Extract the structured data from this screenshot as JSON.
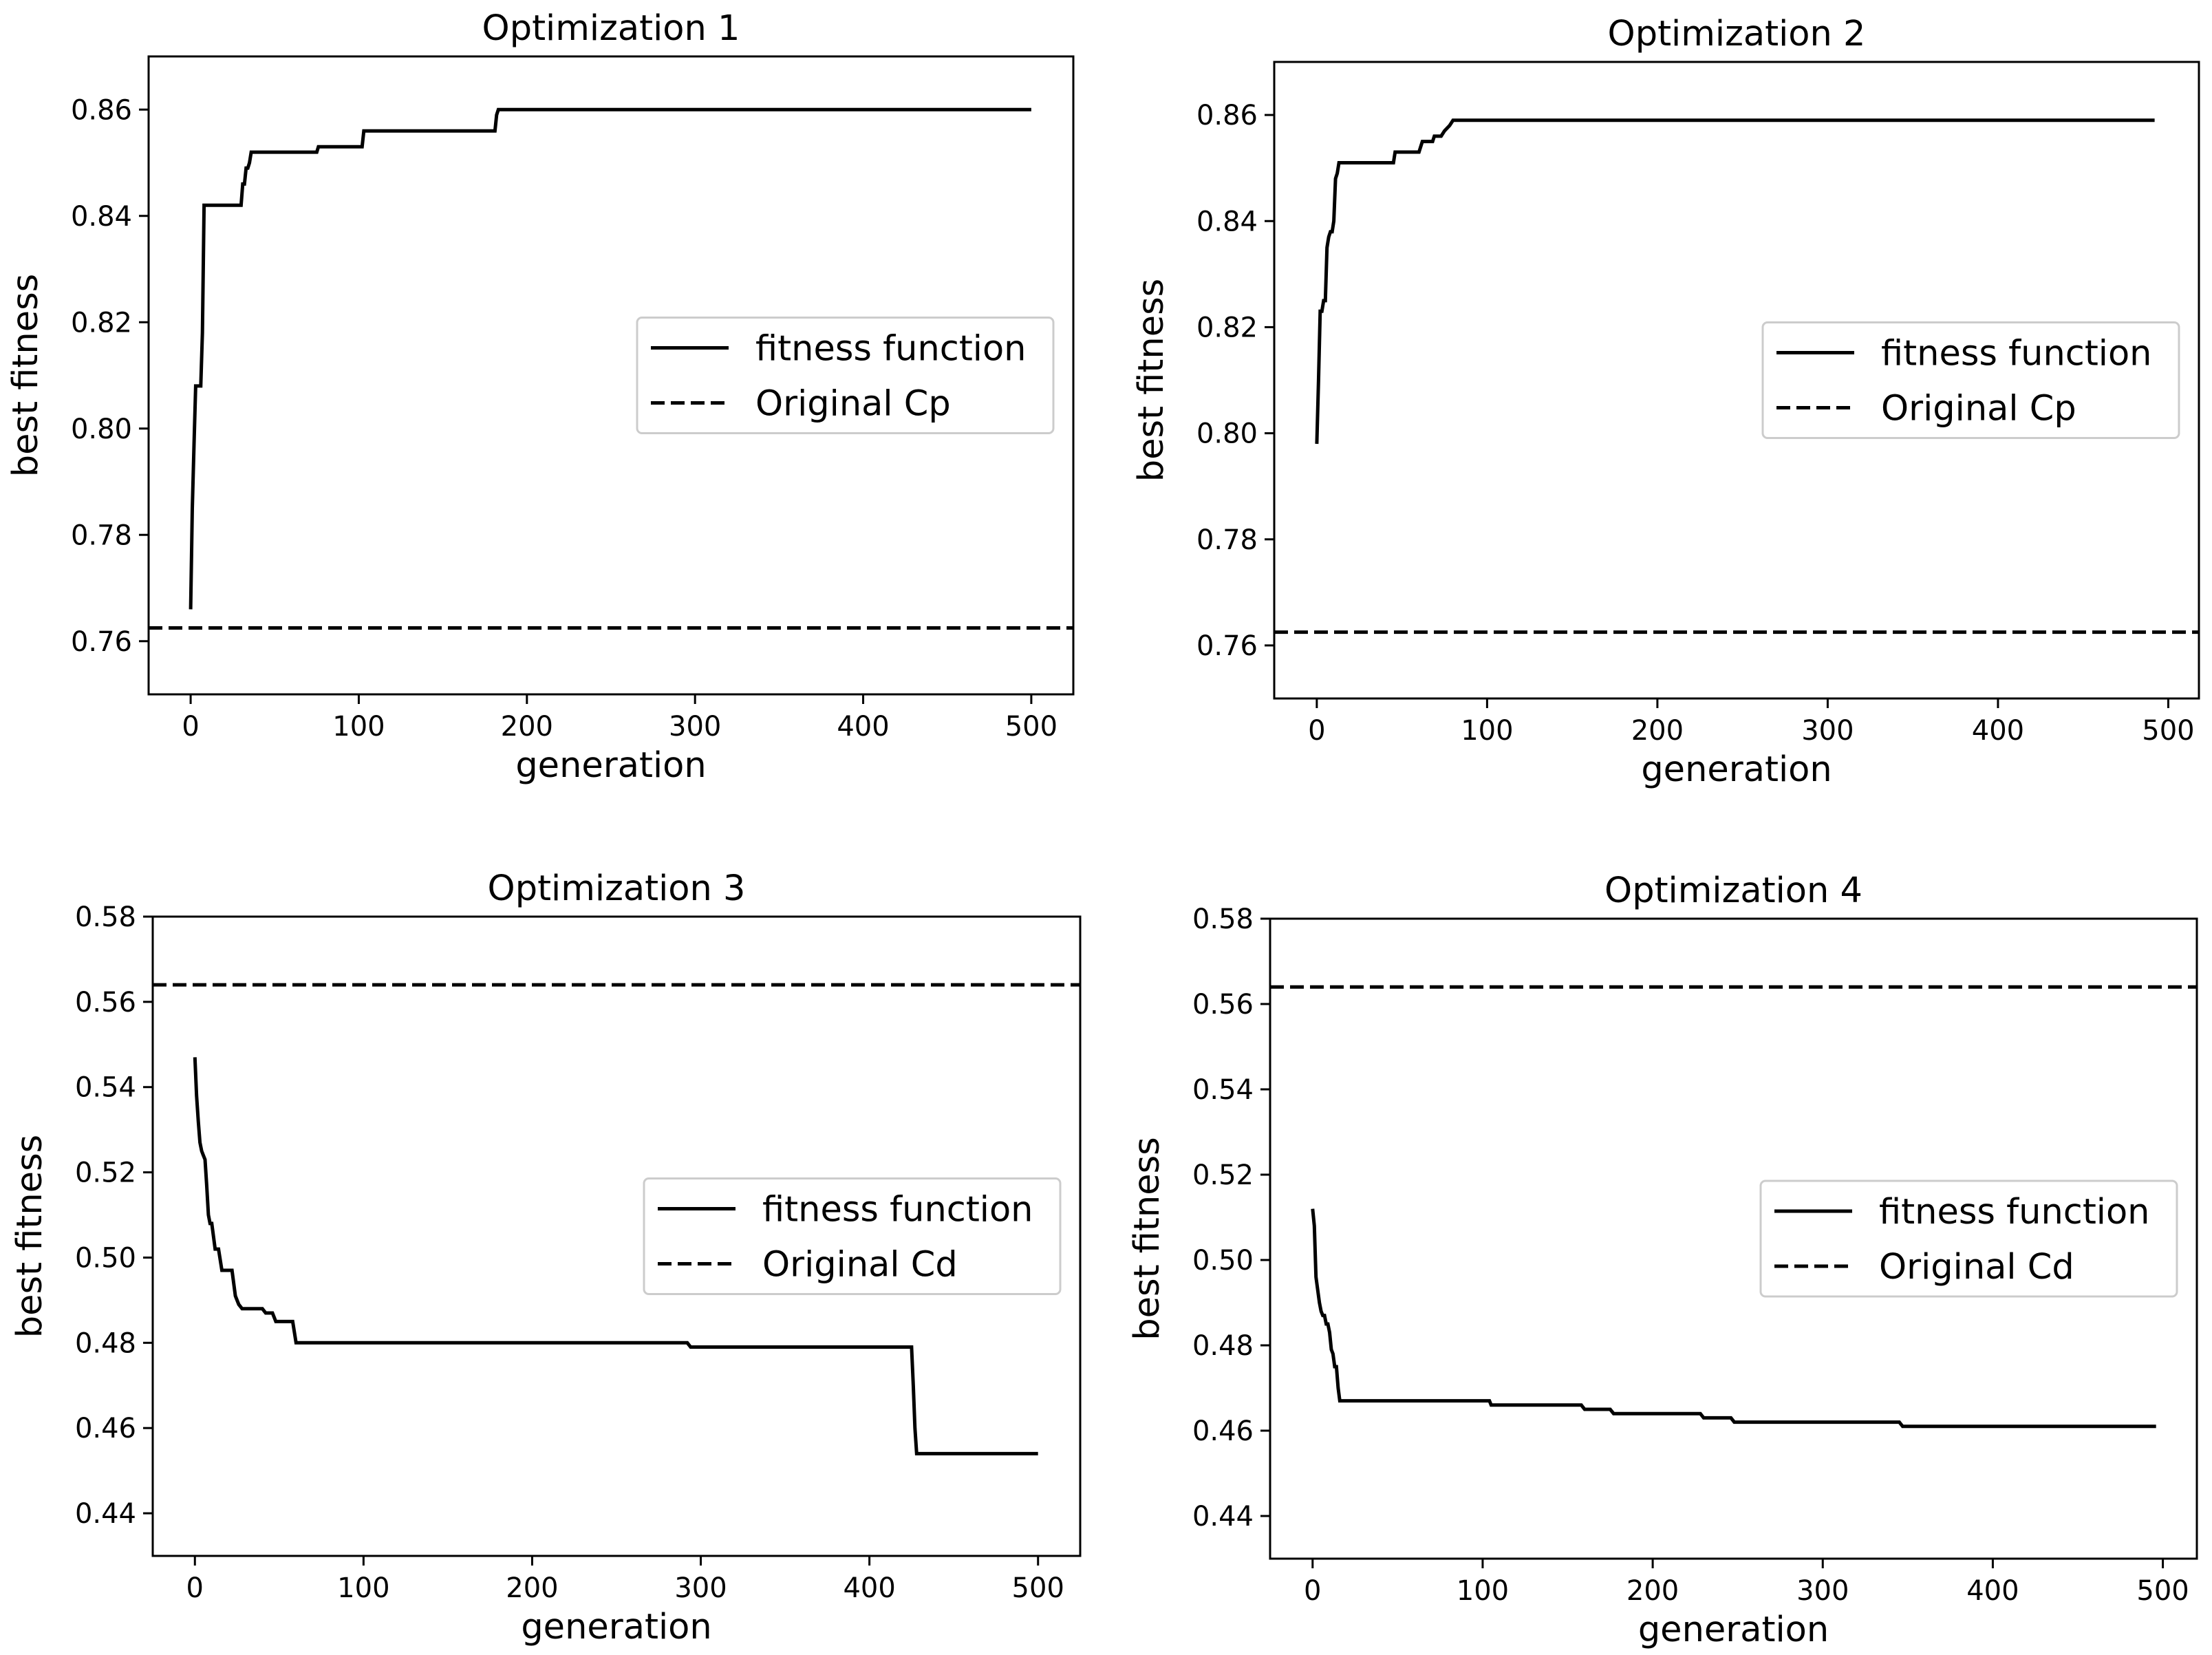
{
  "figure": {
    "background": "#ffffff",
    "line_color": "#000000",
    "legend_border_color": "#cccccc"
  },
  "chart_data": [
    {
      "type": "line",
      "title": "Optimization 1",
      "xlabel": "generation",
      "ylabel": "best fitness",
      "xlim": [
        -25,
        525
      ],
      "ylim": [
        0.75,
        0.87
      ],
      "xticks": [
        0,
        100,
        200,
        300,
        400,
        500
      ],
      "yticks": [
        0.76,
        0.78,
        0.8,
        0.82,
        0.84,
        0.86
      ],
      "ytick_labels": [
        "0.76",
        "0.78",
        "0.80",
        "0.82",
        "0.84",
        "0.86"
      ],
      "legend_location": "center-right",
      "series": [
        {
          "name": "fitness function",
          "style": "solid",
          "x": [
            0,
            1,
            2,
            3,
            4,
            5,
            6,
            7,
            8,
            9,
            10,
            30,
            31,
            32,
            33,
            34,
            35,
            36,
            37,
            38,
            75,
            76,
            102,
            103,
            180,
            181,
            182,
            183,
            500
          ],
          "y": [
            0.766,
            0.785,
            0.797,
            0.808,
            0.808,
            0.808,
            0.808,
            0.818,
            0.842,
            0.842,
            0.842,
            0.842,
            0.846,
            0.846,
            0.849,
            0.849,
            0.85,
            0.852,
            0.852,
            0.852,
            0.852,
            0.853,
            0.853,
            0.856,
            0.856,
            0.856,
            0.859,
            0.86,
            0.86
          ]
        },
        {
          "name": "Original Cp",
          "style": "dashed",
          "y_const": 0.7625
        }
      ]
    },
    {
      "type": "line",
      "title": "Optimization 2",
      "xlabel": "generation",
      "ylabel": "best fitness",
      "xlim": [
        -25,
        518
      ],
      "ylim": [
        0.75,
        0.87
      ],
      "xticks": [
        0,
        100,
        200,
        300,
        400,
        500
      ],
      "yticks": [
        0.76,
        0.78,
        0.8,
        0.82,
        0.84,
        0.86
      ],
      "ytick_labels": [
        "0.76",
        "0.78",
        "0.80",
        "0.82",
        "0.84",
        "0.86"
      ],
      "legend_location": "center-right",
      "series": [
        {
          "name": "fitness function",
          "style": "solid",
          "x": [
            0,
            1,
            2,
            3,
            4,
            5,
            6,
            7,
            8,
            9,
            10,
            11,
            12,
            13,
            14,
            15,
            45,
            46,
            47,
            48,
            60,
            62,
            68,
            69,
            73,
            75,
            78,
            80,
            492
          ],
          "y": [
            0.798,
            0.81,
            0.823,
            0.823,
            0.825,
            0.825,
            0.835,
            0.837,
            0.838,
            0.838,
            0.84,
            0.848,
            0.849,
            0.851,
            0.851,
            0.851,
            0.851,
            0.853,
            0.853,
            0.853,
            0.853,
            0.855,
            0.855,
            0.856,
            0.856,
            0.857,
            0.858,
            0.859,
            0.859
          ]
        },
        {
          "name": "Original Cp",
          "style": "dashed",
          "y_const": 0.7625
        }
      ]
    },
    {
      "type": "line",
      "title": "Optimization 3",
      "xlabel": "generation",
      "ylabel": "best fitness",
      "xlim": [
        -25,
        525
      ],
      "ylim": [
        0.43,
        0.58
      ],
      "xticks": [
        0,
        100,
        200,
        300,
        400,
        500
      ],
      "yticks": [
        0.44,
        0.46,
        0.48,
        0.5,
        0.52,
        0.54,
        0.56,
        0.58
      ],
      "ytick_labels": [
        "0.44",
        "0.46",
        "0.48",
        "0.50",
        "0.52",
        "0.54",
        "0.56",
        "0.58"
      ],
      "legend_location": "center-right",
      "series": [
        {
          "name": "fitness function",
          "style": "solid",
          "x": [
            0,
            1,
            2,
            3,
            4,
            5,
            6,
            7,
            8,
            9,
            10,
            12,
            14,
            16,
            18,
            20,
            22,
            24,
            26,
            28,
            40,
            42,
            46,
            48,
            58,
            60,
            62,
            292,
            294,
            296,
            425,
            426,
            427,
            428,
            500
          ],
          "y": [
            0.547,
            0.538,
            0.532,
            0.527,
            0.525,
            0.524,
            0.523,
            0.517,
            0.51,
            0.508,
            0.508,
            0.502,
            0.502,
            0.497,
            0.497,
            0.497,
            0.497,
            0.491,
            0.489,
            0.488,
            0.488,
            0.487,
            0.487,
            0.485,
            0.485,
            0.48,
            0.48,
            0.48,
            0.479,
            0.479,
            0.479,
            0.47,
            0.46,
            0.454,
            0.454
          ]
        },
        {
          "name": "Original Cd",
          "style": "dashed",
          "y_const": 0.564
        }
      ]
    },
    {
      "type": "line",
      "title": "Optimization 4",
      "xlabel": "generation",
      "ylabel": "best fitness",
      "xlim": [
        -25,
        520
      ],
      "ylim": [
        0.43,
        0.58
      ],
      "xticks": [
        0,
        100,
        200,
        300,
        400,
        500
      ],
      "yticks": [
        0.44,
        0.46,
        0.48,
        0.5,
        0.52,
        0.54,
        0.56,
        0.58
      ],
      "ytick_labels": [
        "0.44",
        "0.46",
        "0.48",
        "0.50",
        "0.52",
        "0.54",
        "0.56",
        "0.58"
      ],
      "legend_location": "center-right",
      "series": [
        {
          "name": "fitness function",
          "style": "solid",
          "x": [
            0,
            1,
            2,
            3,
            4,
            5,
            6,
            7,
            8,
            9,
            10,
            11,
            12,
            13,
            14,
            15,
            16,
            104,
            105,
            106,
            158,
            160,
            175,
            177,
            228,
            230,
            246,
            248,
            345,
            347,
            496
          ],
          "y": [
            0.512,
            0.508,
            0.496,
            0.493,
            0.49,
            0.488,
            0.487,
            0.487,
            0.485,
            0.485,
            0.483,
            0.479,
            0.478,
            0.475,
            0.475,
            0.47,
            0.467,
            0.467,
            0.466,
            0.466,
            0.466,
            0.465,
            0.465,
            0.464,
            0.464,
            0.463,
            0.463,
            0.462,
            0.462,
            0.461,
            0.461
          ]
        },
        {
          "name": "Original Cd",
          "style": "dashed",
          "y_const": 0.564
        }
      ]
    }
  ]
}
